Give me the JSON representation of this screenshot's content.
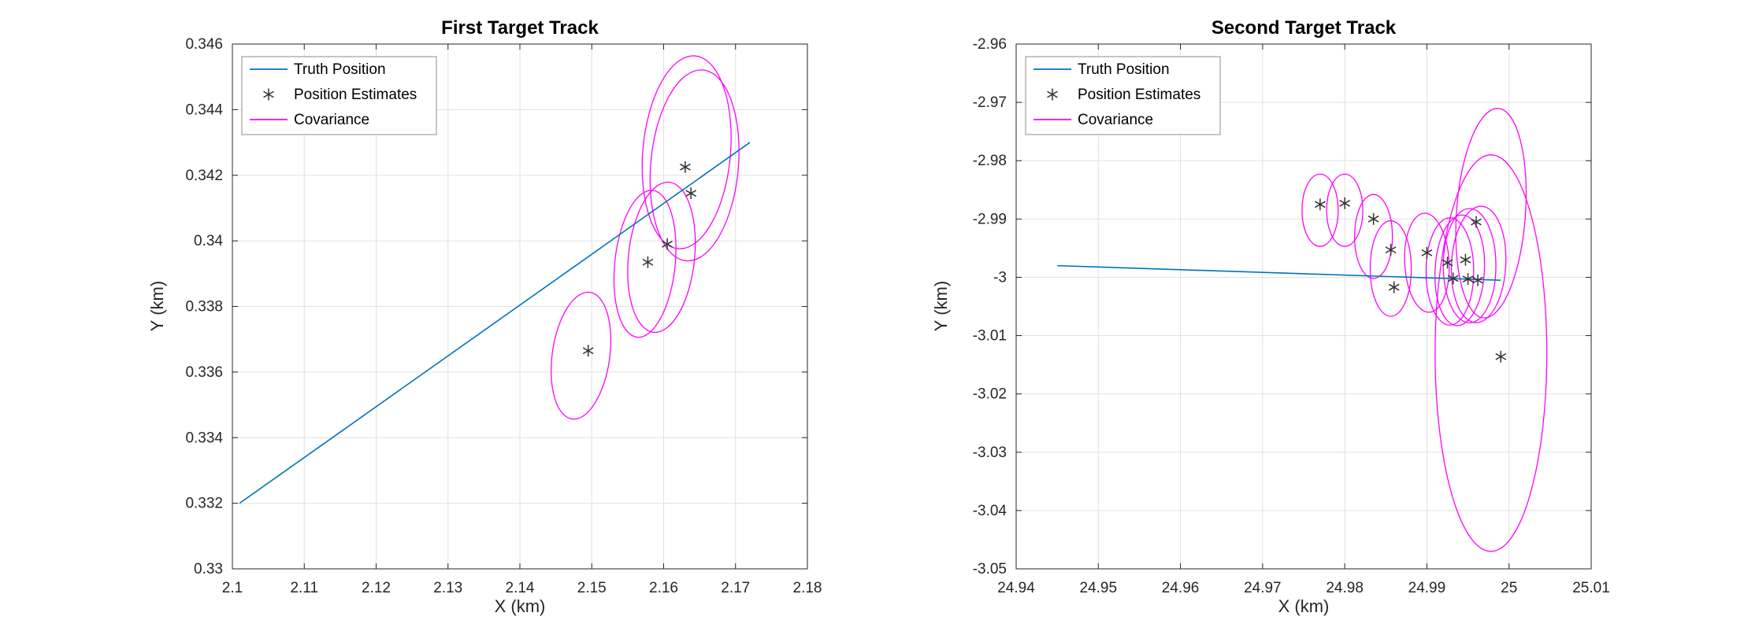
{
  "figure": {
    "background": "#ffffff"
  },
  "style": {
    "truth_color": "#0072BD",
    "estimate_color": "#333333",
    "covariance_color": "#FF00FF",
    "grid_color": "#e0e0e0",
    "axis_color": "#262626",
    "tick_label_color": "#262626",
    "legend_border_color": "#8c8c8c",
    "legend_text_color": "#000000"
  },
  "legend": {
    "position": "top-left",
    "entries": [
      {
        "label": "Truth Position",
        "sample": "line",
        "color": "#0072BD"
      },
      {
        "label": "Position Estimates",
        "sample": "asterisk",
        "color": "#333333"
      },
      {
        "label": "Covariance",
        "sample": "line",
        "color": "#FF00FF"
      }
    ]
  },
  "chart_data": [
    {
      "type": "scatter",
      "title": "First Target Track",
      "xlabel": "X (km)",
      "ylabel": "Y (km)",
      "xlim": [
        2.1,
        2.18
      ],
      "ylim": [
        0.33,
        0.346
      ],
      "grid": true,
      "legend_position": "top-left",
      "x_ticks": [
        2.1,
        2.11,
        2.12,
        2.13,
        2.14,
        2.15,
        2.16,
        2.17,
        2.18
      ],
      "x_tick_labels": [
        "2.1",
        "2.11",
        "2.12",
        "2.13",
        "2.14",
        "2.15",
        "2.16",
        "2.17",
        "2.18"
      ],
      "y_ticks": [
        0.33,
        0.332,
        0.334,
        0.336,
        0.338,
        0.34,
        0.342,
        0.344,
        0.346
      ],
      "y_tick_labels": [
        "0.33",
        "0.332",
        "0.334",
        "0.336",
        "0.338",
        "0.34",
        "0.342",
        "0.344",
        "0.346"
      ],
      "truth_line": {
        "x": [
          2.101,
          2.172
        ],
        "y": [
          0.332,
          0.343
        ]
      },
      "estimates": [
        [
          2.1495,
          0.33665
        ],
        [
          2.1578,
          0.33935
        ],
        [
          2.1605,
          0.3399
        ],
        [
          2.163,
          0.34225
        ],
        [
          2.1638,
          0.34145
        ]
      ],
      "ellipses": [
        {
          "cx": 2.1485,
          "cy": 0.3365,
          "rx": 0.004,
          "ry": 0.00195,
          "angle": 8
        },
        {
          "cx": 2.1574,
          "cy": 0.3393,
          "rx": 0.0042,
          "ry": 0.00225,
          "angle": 6
        },
        {
          "cx": 2.1597,
          "cy": 0.3395,
          "rx": 0.0046,
          "ry": 0.0023,
          "angle": 6
        },
        {
          "cx": 2.1632,
          "cy": 0.3427,
          "rx": 0.0061,
          "ry": 0.00295,
          "angle": 5
        },
        {
          "cx": 2.1643,
          "cy": 0.3423,
          "rx": 0.0061,
          "ry": 0.00292,
          "angle": 5
        }
      ]
    },
    {
      "type": "scatter",
      "title": "Second Target Track",
      "xlabel": "X (km)",
      "ylabel": "Y (km)",
      "xlim": [
        24.94,
        25.01
      ],
      "ylim": [
        -3.05,
        -2.96
      ],
      "grid": true,
      "legend_position": "top-left",
      "x_ticks": [
        24.94,
        24.95,
        24.96,
        24.97,
        24.98,
        24.99,
        25,
        25.01
      ],
      "x_tick_labels": [
        "24.94",
        "24.95",
        "24.96",
        "24.97",
        "24.98",
        "24.99",
        "25",
        "25.01"
      ],
      "y_ticks": [
        -3.05,
        -3.04,
        -3.03,
        -3.02,
        -3.01,
        -3,
        -2.99,
        -2.98,
        -2.97,
        -2.96
      ],
      "y_tick_labels": [
        "-3.05",
        "-3.04",
        "-3.03",
        "-3.02",
        "-3.01",
        "-3",
        "-2.99",
        "-2.98",
        "-2.97",
        "-2.96"
      ],
      "truth_line": {
        "x": [
          24.945,
          24.999
        ],
        "y": [
          -2.998,
          -3.0005
        ]
      },
      "estimates": [
        [
          24.977,
          -2.9875
        ],
        [
          24.98,
          -2.9873
        ],
        [
          24.9835,
          -2.99
        ],
        [
          24.9856,
          -2.9953
        ],
        [
          24.986,
          -3.0017
        ],
        [
          24.99,
          -2.9958
        ],
        [
          24.9925,
          -2.9975
        ],
        [
          24.9932,
          -3.0002
        ],
        [
          24.9947,
          -2.997
        ],
        [
          24.995,
          -3.0003
        ],
        [
          24.996,
          -2.9905
        ],
        [
          24.9962,
          -3.0005
        ],
        [
          24.999,
          -3.0136
        ]
      ],
      "ellipses": [
        {
          "cx": 24.977,
          "cy": -2.9885,
          "rx": 0.0022,
          "ry": 0.0062,
          "angle": 0
        },
        {
          "cx": 24.98,
          "cy": -2.9885,
          "rx": 0.0022,
          "ry": 0.0062,
          "angle": 0
        },
        {
          "cx": 24.9835,
          "cy": -2.993,
          "rx": 0.0023,
          "ry": 0.0072,
          "angle": 0
        },
        {
          "cx": 24.9856,
          "cy": -2.9985,
          "rx": 0.0025,
          "ry": 0.0082,
          "angle": 0
        },
        {
          "cx": 24.99,
          "cy": -2.9975,
          "rx": 0.0027,
          "ry": 0.0085,
          "angle": -3
        },
        {
          "cx": 24.9928,
          "cy": -2.999,
          "rx": 0.0029,
          "ry": 0.0092,
          "angle": 0
        },
        {
          "cx": 24.994,
          "cy": -2.9988,
          "rx": 0.003,
          "ry": 0.0095,
          "angle": 3
        },
        {
          "cx": 24.9952,
          "cy": -2.998,
          "rx": 0.0032,
          "ry": 0.0098,
          "angle": 0
        },
        {
          "cx": 24.9963,
          "cy": -2.9978,
          "rx": 0.0033,
          "ry": 0.01,
          "angle": 3
        },
        {
          "cx": 24.9978,
          "cy": -2.989,
          "rx": 0.0042,
          "ry": 0.018,
          "angle": 4
        },
        {
          "cx": 24.9978,
          "cy": -3.013,
          "rx": 0.0068,
          "ry": 0.034,
          "angle": 0
        }
      ]
    }
  ]
}
